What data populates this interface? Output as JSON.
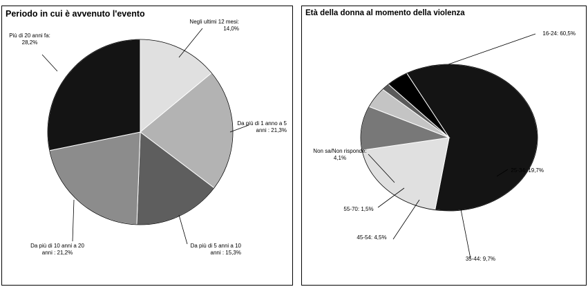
{
  "chart_data": [
    {
      "type": "pie",
      "title": "Periodo in cui è avvenuto l'evento",
      "unit": "%",
      "slices": [
        {
          "label_lines": [
            "Negli ultimi 12 mesi:",
            "14,0%"
          ],
          "value": 14.0,
          "color": "#e0e0e0"
        },
        {
          "label_lines": [
            "Da più di 1 anno a 5",
            "anni : 21,3%"
          ],
          "value": 21.3,
          "color": "#b3b3b3"
        },
        {
          "label_lines": [
            "Da più di 5 anni a 10",
            "anni : 15,3%"
          ],
          "value": 15.3,
          "color": "#5e5e5e"
        },
        {
          "label_lines": [
            "Da più di 10 anni a 20",
            "anni : 21,2%"
          ],
          "value": 21.2,
          "color": "#8c8c8c"
        },
        {
          "label_lines": [
            "Più di 20 anni fa:",
            "28,2%"
          ],
          "value": 28.2,
          "color": "#141414"
        }
      ]
    },
    {
      "type": "pie",
      "title": "Età della donna al momento della violenza",
      "unit": "%",
      "slices": [
        {
          "label_lines": [
            "16-24: 60,5%"
          ],
          "value": 60.5,
          "color": "#141414"
        },
        {
          "label_lines": [
            "25-34: 19,7%"
          ],
          "value": 19.7,
          "color": "#e0e0e0"
        },
        {
          "label_lines": [
            "35-44: 9,7%"
          ],
          "value": 9.7,
          "color": "#787878"
        },
        {
          "label_lines": [
            "45-54: 4,5%"
          ],
          "value": 4.5,
          "color": "#c4c4c4"
        },
        {
          "label_lines": [
            "55-70: 1,5%"
          ],
          "value": 1.5,
          "color": "#5a5a5a"
        },
        {
          "label_lines": [
            "Non sa/Non risponde:",
            "4,1%"
          ],
          "value": 4.1,
          "color": "#000000"
        }
      ]
    }
  ]
}
